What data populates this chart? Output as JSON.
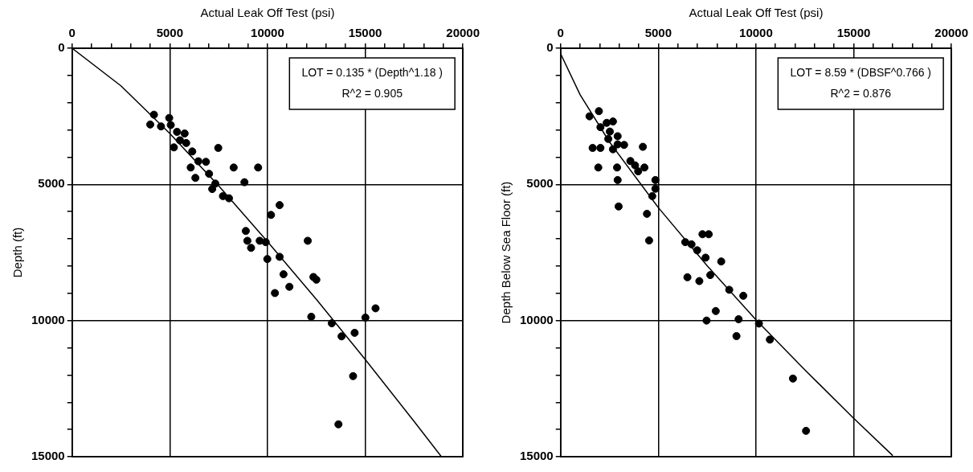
{
  "chart_data": [
    {
      "type": "scatter",
      "xlabel": "Actual Leak Off Test (psi)",
      "ylabel": "Depth (ft)",
      "xlim": [
        0,
        20000
      ],
      "ylim": [
        15000,
        0
      ],
      "xticks": [
        0,
        {
          "value": 1000,
          "label": null
        },
        {
          "value": 2000,
          "label": null
        },
        {
          "value": 3000,
          "label": null
        },
        {
          "value": 4000,
          "label": null
        },
        5000,
        {
          "value": 6000,
          "label": null
        },
        {
          "value": 7000,
          "label": null
        },
        {
          "value": 8000,
          "label": null
        },
        {
          "value": 9000,
          "label": null
        },
        10000,
        {
          "value": 11000,
          "label": null
        },
        {
          "value": 12000,
          "label": null
        },
        {
          "value": 13000,
          "label": null
        },
        {
          "value": 14000,
          "label": null
        },
        15000,
        {
          "value": 16000,
          "label": null
        },
        {
          "value": 17000,
          "label": null
        },
        {
          "value": 18000,
          "label": null
        },
        {
          "value": 19000,
          "label": null
        },
        20000
      ],
      "yticks": [
        0,
        {
          "value": 1000,
          "label": null
        },
        {
          "value": 2000,
          "label": null
        },
        {
          "value": 3000,
          "label": null
        },
        {
          "value": 4000,
          "label": null
        },
        5000,
        {
          "value": 6000,
          "label": null
        },
        {
          "value": 7000,
          "label": null
        },
        {
          "value": 8000,
          "label": null
        },
        {
          "value": 9000,
          "label": null
        },
        10000,
        {
          "value": 11000,
          "label": null
        },
        {
          "value": 12000,
          "label": null
        },
        {
          "value": 13000,
          "label": null
        },
        {
          "value": 14000,
          "label": null
        },
        15000
      ],
      "grid": true,
      "legend": false,
      "marker": "circle",
      "annotations": [
        "LOT = 0.135 * (Depth^1.18 )",
        "R^2 = 0.905"
      ],
      "series": [
        {
          "color": "#000000",
          "x": [
            4190,
            4000,
            4550,
            4970,
            5050,
            5370,
            5760,
            5520,
            5210,
            5840,
            6150,
            7480,
            6460,
            6850,
            6070,
            8270,
            9520,
            6310,
            7010,
            8820,
            7330,
            7170,
            7720,
            8030,
            10620,
            10180,
            8890,
            8970,
            9160,
            9600,
            9910,
            12060,
            9990,
            10620,
            10820,
            12350,
            12500,
            11120,
            10380,
            15530,
            12240,
            13290,
            15010,
            13790,
            14460,
            14380,
            13630
          ],
          "values": [
            2440,
            2800,
            2870,
            2560,
            2820,
            3070,
            3130,
            3380,
            3640,
            3480,
            3790,
            3660,
            4150,
            4170,
            4380,
            4380,
            4380,
            4760,
            4610,
            4920,
            4970,
            5170,
            5430,
            5510,
            5760,
            6120,
            6710,
            7070,
            7330,
            7070,
            7120,
            7070,
            7740,
            7660,
            8300,
            8400,
            8500,
            8760,
            8990,
            9550,
            9860,
            10100,
            9890,
            10580,
            10450,
            12040,
            13810
          ]
        },
        {
          "type": "line",
          "marker": "none",
          "color": "#000000",
          "x": [
            0,
            2500,
            5000,
            7500,
            10000,
            12500,
            15000,
            17500,
            18900
          ],
          "values": [
            0,
            1380,
            3130,
            5050,
            7100,
            9220,
            11430,
            13700,
            15000
          ]
        }
      ]
    },
    {
      "type": "scatter",
      "xlabel": "Actual Leak Off Test (psi)",
      "ylabel": "Depth Below Sea Floor (ft)",
      "xlim": [
        0,
        20000
      ],
      "ylim": [
        15000,
        0
      ],
      "xticks": [
        0,
        {
          "value": 1000,
          "label": null
        },
        {
          "value": 2000,
          "label": null
        },
        {
          "value": 3000,
          "label": null
        },
        {
          "value": 4000,
          "label": null
        },
        5000,
        {
          "value": 6000,
          "label": null
        },
        {
          "value": 7000,
          "label": null
        },
        {
          "value": 8000,
          "label": null
        },
        {
          "value": 9000,
          "label": null
        },
        10000,
        {
          "value": 11000,
          "label": null
        },
        {
          "value": 12000,
          "label": null
        },
        {
          "value": 13000,
          "label": null
        },
        {
          "value": 14000,
          "label": null
        },
        15000,
        {
          "value": 16000,
          "label": null
        },
        {
          "value": 17000,
          "label": null
        },
        {
          "value": 18000,
          "label": null
        },
        {
          "value": 19000,
          "label": null
        },
        20000
      ],
      "yticks": [
        0,
        {
          "value": 1000,
          "label": null
        },
        {
          "value": 2000,
          "label": null
        },
        {
          "value": 3000,
          "label": null
        },
        {
          "value": 4000,
          "label": null
        },
        5000,
        {
          "value": 6000,
          "label": null
        },
        {
          "value": 7000,
          "label": null
        },
        {
          "value": 8000,
          "label": null
        },
        {
          "value": 9000,
          "label": null
        },
        10000,
        {
          "value": 11000,
          "label": null
        },
        {
          "value": 12000,
          "label": null
        },
        {
          "value": 13000,
          "label": null
        },
        {
          "value": 14000,
          "label": null
        },
        15000
      ],
      "grid": true,
      "legend": false,
      "marker": "circle",
      "annotations": [
        "LOT = 8.59 * (DBSF^0.766 )",
        "R^2 = 0.876"
      ],
      "series": [
        {
          "color": "#000000",
          "x": [
            1480,
            1960,
            2360,
            2680,
            2040,
            2520,
            2920,
            2440,
            3250,
            2920,
            1640,
            2040,
            4210,
            2680,
            3570,
            3810,
            1930,
            2890,
            4290,
            3970,
            2920,
            4850,
            4850,
            4690,
            2970,
            4420,
            4530,
            7260,
            7580,
            6380,
            6700,
            6990,
            7420,
            8220,
            7660,
            6490,
            7100,
            8630,
            9350,
            7940,
            7470,
            9110,
            10150,
            9000,
            10710,
            11890,
            12560
          ],
          "values": [
            2500,
            2310,
            2740,
            2690,
            2900,
            3060,
            3230,
            3330,
            3550,
            3530,
            3660,
            3660,
            3620,
            3710,
            4140,
            4300,
            4380,
            4380,
            4380,
            4520,
            4840,
            4840,
            5160,
            5430,
            5810,
            6080,
            7060,
            6830,
            6830,
            7120,
            7200,
            7420,
            7690,
            7830,
            8330,
            8410,
            8550,
            8870,
            9090,
            9650,
            10000,
            9950,
            10110,
            10570,
            10700,
            12130,
            14050
          ]
        },
        {
          "type": "line",
          "marker": "none",
          "color": "#000000",
          "x": [
            0,
            1000,
            2500,
            5000,
            7500,
            10000,
            12500,
            15000,
            17000
          ],
          "values": [
            200,
            1710,
            3440,
            5850,
            7990,
            9970,
            11810,
            13590,
            14960
          ]
        }
      ]
    }
  ]
}
